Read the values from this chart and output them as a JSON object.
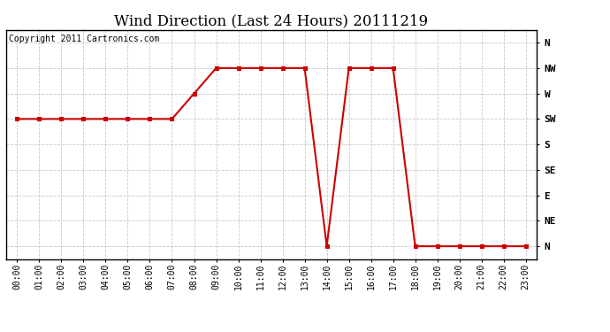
{
  "title": "Wind Direction (Last 24 Hours) 20111219",
  "copyright_text": "Copyright 2011 Cartronics.com",
  "background_color": "#ffffff",
  "plot_bg_color": "#ffffff",
  "grid_color": "#c8c8c8",
  "line_color": "#cc0000",
  "marker_color": "#cc0000",
  "x_labels": [
    "00:00",
    "01:00",
    "02:00",
    "03:00",
    "04:00",
    "05:00",
    "06:00",
    "07:00",
    "08:00",
    "09:00",
    "10:00",
    "11:00",
    "12:00",
    "13:00",
    "14:00",
    "15:00",
    "16:00",
    "17:00",
    "18:00",
    "19:00",
    "20:00",
    "21:00",
    "22:00",
    "23:00"
  ],
  "y_labels": [
    "N",
    "NE",
    "E",
    "SE",
    "S",
    "SW",
    "W",
    "NW",
    "N"
  ],
  "y_values": [
    0,
    1,
    2,
    3,
    4,
    5,
    6,
    7,
    8
  ],
  "data_points": [
    [
      0,
      5
    ],
    [
      1,
      5
    ],
    [
      2,
      5
    ],
    [
      3,
      5
    ],
    [
      4,
      5
    ],
    [
      5,
      5
    ],
    [
      6,
      5
    ],
    [
      7,
      5
    ],
    [
      8,
      6
    ],
    [
      9,
      7
    ],
    [
      10,
      7
    ],
    [
      11,
      7
    ],
    [
      12,
      7
    ],
    [
      13,
      7
    ],
    [
      14,
      0
    ],
    [
      15,
      7
    ],
    [
      16,
      7
    ],
    [
      17,
      7
    ],
    [
      18,
      0
    ],
    [
      19,
      0
    ],
    [
      20,
      0
    ],
    [
      21,
      0
    ],
    [
      22,
      0
    ],
    [
      23,
      0
    ]
  ],
  "title_fontsize": 12,
  "copyright_fontsize": 7,
  "tick_fontsize": 7,
  "ytick_fontsize": 8
}
